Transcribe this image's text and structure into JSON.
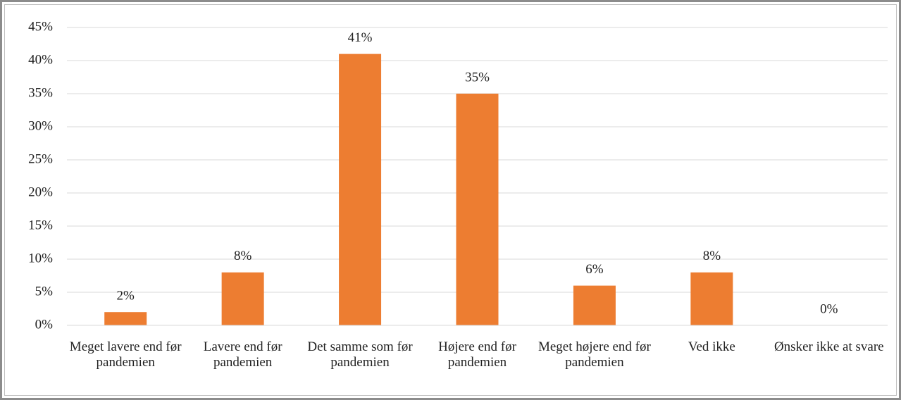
{
  "chart_data": {
    "type": "bar",
    "categories": [
      "Meget lavere end før pandemien",
      "Lavere end før pandemien",
      "Det samme som før pandemien",
      "Højere end før pandemien",
      "Meget højere end før pandemien",
      "Ved ikke",
      "Ønsker ikke at svare"
    ],
    "values": [
      2,
      8,
      41,
      35,
      6,
      8,
      0
    ],
    "value_labels": [
      "2%",
      "8%",
      "41%",
      "35%",
      "6%",
      "8%",
      "0%"
    ],
    "color": "#ed7d31",
    "ylim": [
      0,
      45
    ],
    "yticks": [
      {
        "value": 0,
        "label": "0%"
      },
      {
        "value": 5,
        "label": "5%"
      },
      {
        "value": 10,
        "label": "10%"
      },
      {
        "value": 15,
        "label": "15%"
      },
      {
        "value": 20,
        "label": "20%"
      },
      {
        "value": 25,
        "label": "25%"
      },
      {
        "value": 30,
        "label": "30%"
      },
      {
        "value": 35,
        "label": "35%"
      },
      {
        "value": 40,
        "label": "40%"
      },
      {
        "value": 45,
        "label": "45%"
      }
    ],
    "grid": true
  }
}
